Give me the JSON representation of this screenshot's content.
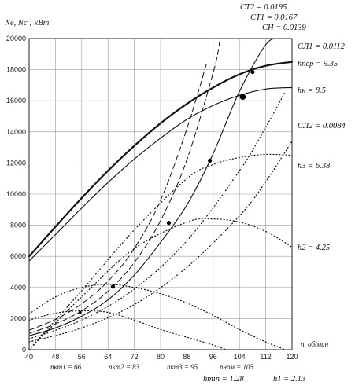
{
  "chart_data": {
    "type": "line",
    "ylabel": "Ne, Nc ; кВт",
    "xlabel": "n, об/мин",
    "xlim": [
      40,
      120
    ],
    "ylim": [
      0,
      20000
    ],
    "x_ticks": [
      40,
      48,
      56,
      64,
      72,
      80,
      88,
      96,
      104,
      112,
      120
    ],
    "y_ticks": [
      0,
      2000,
      4000,
      6000,
      8000,
      10000,
      12000,
      14000,
      16000,
      18000,
      20000
    ],
    "grid": true,
    "series": [
      {
        "name": "h_пер = 9.35",
        "style": "bold-solid",
        "x": [
          40,
          48,
          56,
          64,
          72,
          80,
          88,
          96,
          104,
          112,
          120
        ],
        "y": [
          6000,
          7900,
          9750,
          11500,
          13100,
          14550,
          15800,
          16850,
          17700,
          18250,
          18500
        ]
      },
      {
        "name": "h_н = 8.5",
        "style": "solid",
        "x": [
          40,
          48,
          56,
          64,
          72,
          80,
          88,
          96,
          104,
          112,
          120
        ],
        "y": [
          5700,
          7400,
          9100,
          10750,
          12250,
          13600,
          14800,
          15700,
          16350,
          16750,
          16850
        ]
      },
      {
        "name": "h3 = 6.38",
        "style": "dotted",
        "x": [
          40,
          56,
          72,
          88,
          96,
          104,
          112,
          120
        ],
        "y": [
          0,
          3800,
          7700,
          11000,
          11900,
          12350,
          12550,
          12500
        ]
      },
      {
        "name": "h2 = 4.25",
        "style": "dotted",
        "x": [
          40,
          56,
          72,
          88,
          96,
          104,
          112,
          120
        ],
        "y": [
          0,
          3400,
          6500,
          8200,
          8400,
          8200,
          7600,
          6600
        ]
      },
      {
        "name": "h_min = 1.28",
        "style": "dotted",
        "x": [
          40,
          48,
          56,
          64,
          72,
          80,
          88,
          96,
          100
        ],
        "y": [
          1900,
          2350,
          2500,
          2400,
          1900,
          1300,
          800,
          300,
          0
        ]
      },
      {
        "name": "h1 = 2.13",
        "style": "dotted",
        "x": [
          40,
          48,
          56,
          64,
          72,
          80,
          88,
          96,
          104,
          112,
          118
        ],
        "y": [
          2300,
          3400,
          4000,
          4200,
          4000,
          3600,
          3000,
          2200,
          1300,
          500,
          0
        ]
      },
      {
        "name": "C_Л1 = 0.0112",
        "style": "dotted",
        "x": [
          40,
          56,
          72,
          88,
          104,
          112,
          118
        ],
        "y": [
          700,
          1900,
          3900,
          7000,
          11500,
          14300,
          16600
        ]
      },
      {
        "name": "C_Л2 = 0.0084",
        "style": "dotted",
        "x": [
          40,
          56,
          72,
          88,
          104,
          112,
          120
        ],
        "y": [
          500,
          1400,
          2900,
          5300,
          8600,
          10800,
          13400
        ]
      },
      {
        "name": "C_Т2 = 0.0195",
        "style": "dashed",
        "x": [
          40,
          48,
          56,
          64,
          72,
          80,
          88,
          94
        ],
        "y": [
          1250,
          1950,
          2950,
          4400,
          6500,
          9600,
          14200,
          18400
        ]
      },
      {
        "name": "C_Т1 = 0.0167",
        "style": "dashed",
        "x": [
          40,
          48,
          56,
          64,
          72,
          80,
          88,
          96,
          98
        ],
        "y": [
          1050,
          1650,
          2500,
          3750,
          5600,
          8300,
          12200,
          17800,
          19800
        ]
      },
      {
        "name": "C_Н = 0.0139",
        "style": "solid",
        "x": [
          40,
          48,
          56,
          64,
          72,
          80,
          88,
          96,
          104,
          112,
          116
        ],
        "y": [
          900,
          1400,
          2150,
          3200,
          4800,
          6900,
          9300,
          12600,
          16600,
          19600,
          20000
        ]
      }
    ],
    "points": [
      {
        "n": 55.5,
        "N": 2400,
        "size": "small"
      },
      {
        "n": 65.5,
        "N": 4050,
        "size": "normal"
      },
      {
        "n": 82.5,
        "N": 8150,
        "size": "normal"
      },
      {
        "n": 95,
        "N": 12150,
        "size": "normal"
      },
      {
        "n": 105,
        "N": 16250,
        "size": "large"
      },
      {
        "n": 108,
        "N": 17850,
        "size": "normal"
      }
    ],
    "annotations": {
      "ct2": "СТ2 = 0.0195",
      "ct1": "СТ1 = 0.0167",
      "cn": "СН = 0.0139",
      "cl1": "СЛ1 = 0.0112",
      "h_per": "hпер = 9.35",
      "h_n": "hн = 8.5",
      "cl2": "СЛ2 = 0.0084",
      "h3": "h3 = 6.38",
      "h2": "h2 = 4.25",
      "n_kt1": "nкт1 = 66",
      "n_kt2": "nкт2 = 83",
      "n_kt3": "nкт3 = 95",
      "n_nom": "nном = 105",
      "h_min": "hmin = 1.28",
      "h1": "h1 = 2.13"
    }
  }
}
